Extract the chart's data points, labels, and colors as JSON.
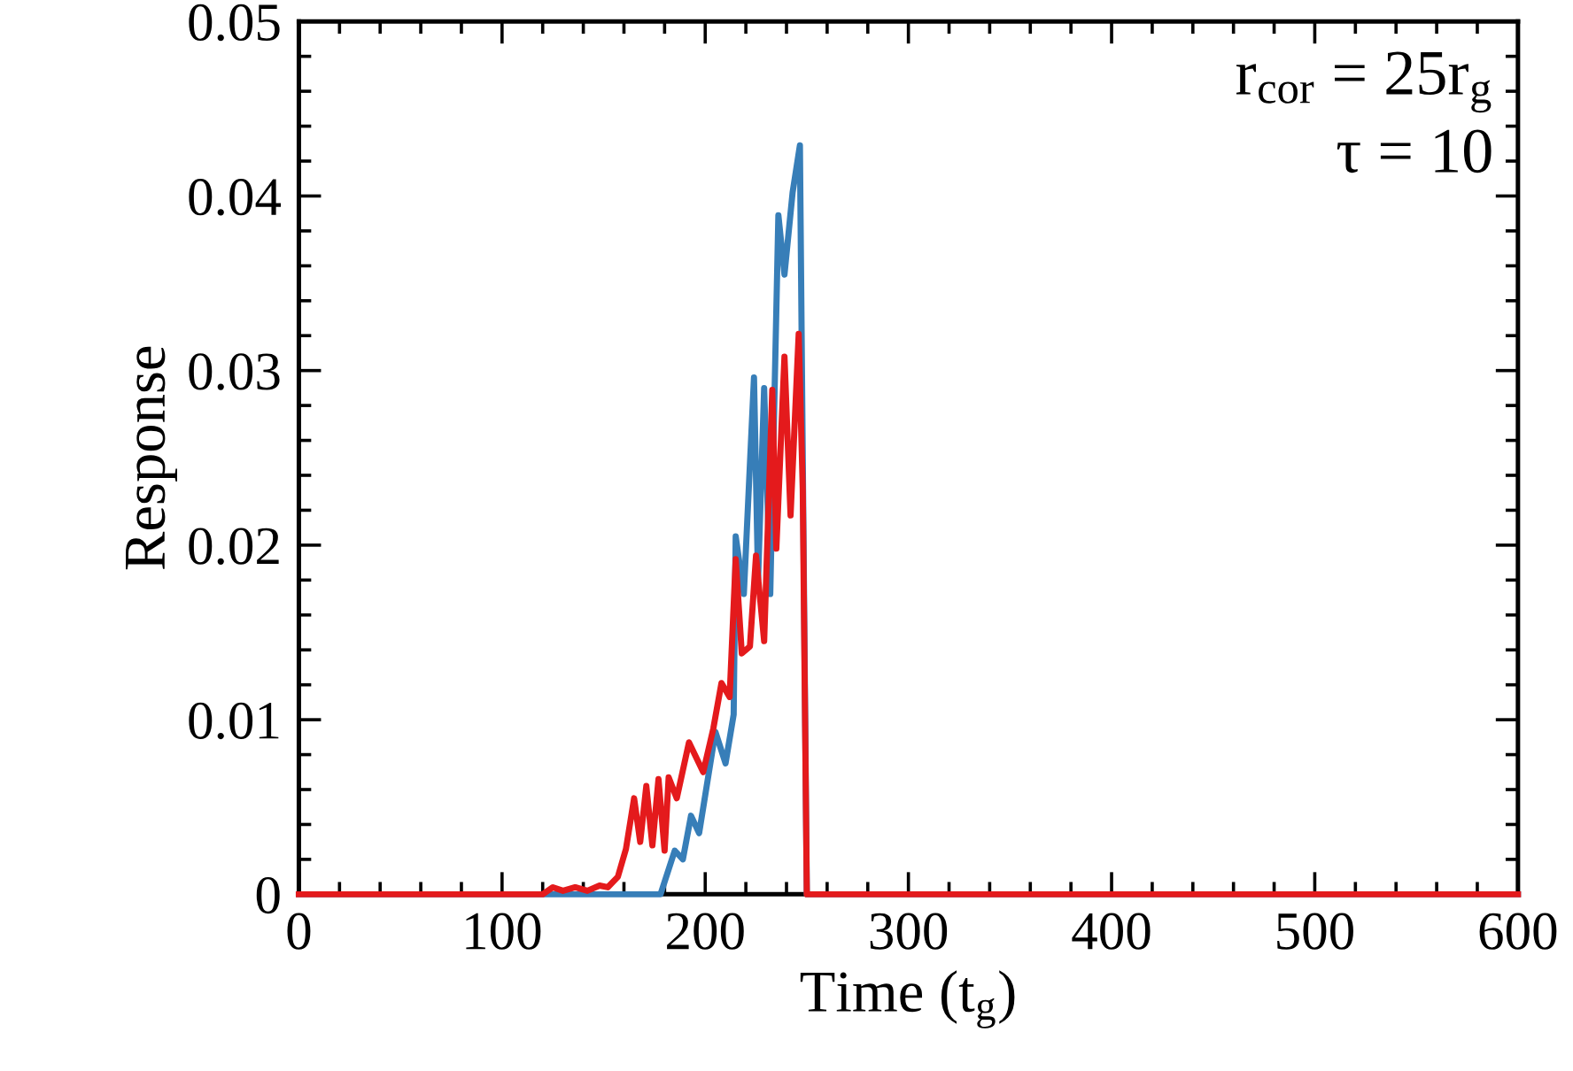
{
  "chart_data": {
    "type": "line",
    "xlabel": "Time (t$_{g}$)",
    "ylabel": "Response",
    "xlim": [
      0,
      600
    ],
    "xticks": [
      0,
      100,
      200,
      300,
      400,
      500,
      600
    ],
    "ylim": [
      0,
      0.05
    ],
    "yticks": [
      0,
      0.01,
      0.02,
      0.03,
      0.04,
      0.05
    ],
    "grid": false,
    "legend": false,
    "marker": "none",
    "line_style": "solid",
    "annotations": [
      "r$_{cor}$ = 25r$_{g}$",
      "τ = 10"
    ],
    "series": [
      {
        "color": "#377eb8",
        "x": [
          0,
          178,
          185,
          189,
          193,
          197,
          205,
          210,
          214,
          215,
          219,
          224,
          226,
          229,
          232,
          236,
          239,
          243,
          246.6,
          248,
          250,
          600
        ],
        "values": [
          0,
          0,
          0.0025,
          0.002,
          0.0045,
          0.0035,
          0.0093,
          0.0075,
          0.0103,
          0.0205,
          0.0172,
          0.0296,
          0.018,
          0.029,
          0.0172,
          0.0389,
          0.0355,
          0.0402,
          0.0429,
          0.025,
          0,
          0
        ]
      },
      {
        "color": "#e41a1c",
        "x": [
          0,
          120,
          125,
          130,
          136,
          142,
          148,
          152,
          157,
          161,
          165,
          168,
          171,
          174,
          177,
          180,
          182,
          186,
          192,
          199,
          204,
          208,
          212,
          215,
          218,
          222,
          225,
          229,
          233,
          235,
          239,
          242,
          246,
          248,
          250,
          600
        ],
        "values": [
          0,
          0,
          0.0004,
          0.0002,
          0.0004,
          0.0002,
          0.0005,
          0.0004,
          0.001,
          0.0026,
          0.0055,
          0.003,
          0.0062,
          0.0028,
          0.0066,
          0.0025,
          0.0067,
          0.0055,
          0.0087,
          0.007,
          0.0095,
          0.0121,
          0.0113,
          0.0192,
          0.0138,
          0.0142,
          0.0194,
          0.0145,
          0.0289,
          0.0198,
          0.0308,
          0.0217,
          0.0321,
          0.0232,
          0,
          0
        ]
      }
    ]
  }
}
